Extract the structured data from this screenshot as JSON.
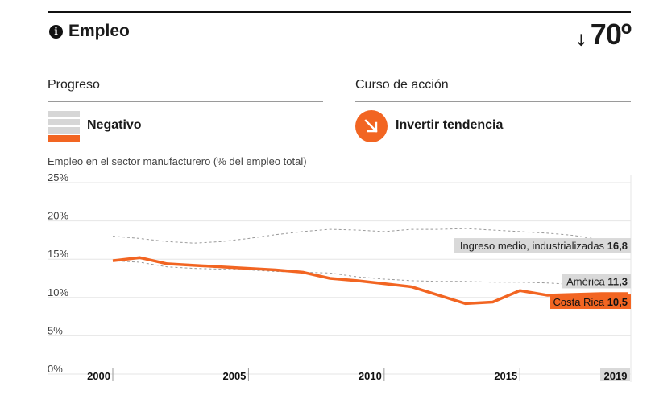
{
  "header": {
    "title": "Empleo",
    "rank_arrow": "↓",
    "rank": "70º",
    "info_icon": "info-icon"
  },
  "progress": {
    "heading": "Progreso",
    "label": "Negativo",
    "icon": "progress-bars-icon",
    "levels_total": 4,
    "levels_active": 1
  },
  "course": {
    "heading": "Curso de acción",
    "label": "Invertir tendencia",
    "icon": "arrow-down-right-icon"
  },
  "colors": {
    "accent": "#f26522",
    "comparison_line": "#9a9a9a",
    "label_bg": "#d9d9d9",
    "grid": "#e6e6e6"
  },
  "chart_data": {
    "type": "line",
    "title": "Empleo en el sector manufacturero (% del empleo total)",
    "y_ticks": [
      "25%",
      "20%",
      "15%",
      "10%",
      "5%",
      "0%"
    ],
    "ylim": [
      0,
      25
    ],
    "xlim": [
      2000,
      2019
    ],
    "x_ticks": [
      {
        "value": 2000,
        "label": "2000"
      },
      {
        "value": 2005,
        "label": "2005"
      },
      {
        "value": 2010,
        "label": "2010"
      },
      {
        "value": 2015,
        "label": "2015"
      },
      {
        "value": 2019,
        "label": "2019"
      }
    ],
    "series": [
      {
        "name": "Ingreso medio, industrializadas",
        "value_label": "16,8",
        "style": "dashed",
        "color": "#9a9a9a",
        "x": [
          2000,
          2001,
          2002,
          2003,
          2004,
          2005,
          2006,
          2007,
          2008,
          2009,
          2010,
          2011,
          2012,
          2013,
          2014,
          2015,
          2016,
          2017,
          2018,
          2019
        ],
        "y": [
          18,
          17.7,
          17.3,
          17.1,
          17.3,
          17.7,
          18.2,
          18.6,
          18.9,
          18.8,
          18.6,
          18.9,
          18.9,
          19.0,
          18.8,
          18.6,
          18.4,
          18.1,
          17.5,
          16.8
        ]
      },
      {
        "name": "América",
        "value_label": "11,3",
        "style": "dashed",
        "color": "#9a9a9a",
        "x": [
          2000,
          2001,
          2002,
          2003,
          2004,
          2005,
          2006,
          2007,
          2008,
          2009,
          2010,
          2011,
          2012,
          2013,
          2014,
          2015,
          2016,
          2017,
          2018,
          2019
        ],
        "y": [
          14.8,
          14.6,
          14.0,
          13.8,
          13.7,
          13.6,
          13.4,
          13.3,
          13.2,
          12.7,
          12.4,
          12.2,
          12.1,
          12.1,
          12.0,
          12.0,
          11.9,
          11.7,
          11.5,
          11.3
        ]
      },
      {
        "name": "Costa Rica",
        "value_label": "10,5",
        "style": "solid",
        "color": "#f26522",
        "x": [
          2000,
          2001,
          2002,
          2003,
          2004,
          2005,
          2006,
          2007,
          2008,
          2009,
          2010,
          2011,
          2012,
          2013,
          2014,
          2015,
          2016,
          2017,
          2018,
          2019
        ],
        "y": [
          14.8,
          15.2,
          14.4,
          14.2,
          14.0,
          13.8,
          13.6,
          13.3,
          12.5,
          12.2,
          11.8,
          11.4,
          10.3,
          9.2,
          9.4,
          10.9,
          10.3,
          10.4,
          10.5,
          10.5
        ]
      }
    ]
  }
}
